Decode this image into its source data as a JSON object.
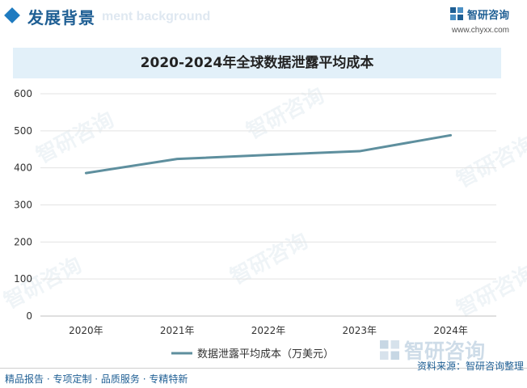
{
  "header": {
    "section_title": "发展背景",
    "section_ghost": "ment background",
    "logo_text": "智研咨询",
    "website": "www.chyxx.com"
  },
  "watermark": {
    "text": "智研咨询"
  },
  "footer": {
    "slogan": "精品报告 · 专项定制 · 品质服务 · 专精特新",
    "source": "资料来源：智研咨询整理"
  },
  "colors": {
    "line": "#5e8f9e",
    "accent": "#1f5f94",
    "title_bg": "#e2f0f9"
  },
  "chart_data": {
    "type": "line",
    "title": "2020-2024年全球数据泄露平均成本",
    "categories": [
      "2020年",
      "2021年",
      "2022年",
      "2023年",
      "2024年"
    ],
    "series": [
      {
        "name": "数据泄露平均成本（万美元）",
        "values": [
          386,
          424,
          435,
          445,
          488
        ]
      }
    ],
    "ylim": [
      0,
      600
    ],
    "yticks": [
      "0",
      "100",
      "200",
      "300",
      "400",
      "500",
      "600"
    ],
    "grid": true,
    "legend": "bottom"
  }
}
